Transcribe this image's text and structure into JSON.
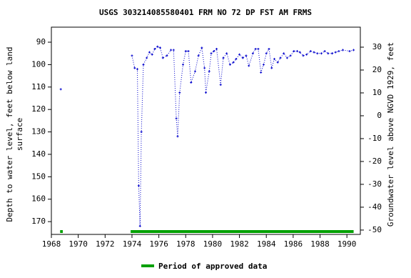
{
  "chart_data": {
    "type": "line",
    "title": "USGS 303214085580401 FRM NO 72 DP FST AM FRMS",
    "ylabel": [
      "Depth to water level, feet below land",
      "surface"
    ],
    "y2label": "Groundwater level above NGVD 1929, feet",
    "xlim": [
      1968,
      1991
    ],
    "xticks": [
      1968,
      1970,
      1972,
      1974,
      1976,
      1978,
      1980,
      1982,
      1984,
      1986,
      1988,
      1990
    ],
    "ylim": [
      175.7,
      83.3
    ],
    "yticks": [
      90,
      100,
      110,
      120,
      130,
      140,
      150,
      160,
      170
    ],
    "y2lim": [
      -51.9,
      38.75
    ],
    "y2ticks": [
      30,
      20,
      10,
      0,
      -10,
      -20,
      -30,
      -40,
      -50
    ],
    "series": [
      {
        "color": "#0000cc",
        "x": [
          1968.7,
          null,
          1974.0,
          1974.2,
          1974.4,
          1974.5,
          1974.6,
          1974.7,
          1974.85,
          1975.1,
          1975.3,
          1975.5,
          1975.7,
          1975.9,
          1976.1,
          1976.3,
          1976.6,
          1976.9,
          1977.1,
          1977.3,
          1977.4,
          1977.55,
          1977.8,
          1978.0,
          1978.2,
          1978.4,
          1978.7,
          1978.95,
          1979.2,
          1979.4,
          1979.5,
          1979.75,
          1979.9,
          1980.1,
          1980.3,
          1980.6,
          1980.8,
          1981.05,
          1981.3,
          1981.55,
          1981.75,
          1982.0,
          1982.25,
          1982.5,
          1982.7,
          1983.0,
          1983.2,
          1983.4,
          1983.6,
          1983.8,
          1984.0,
          1984.2,
          1984.4,
          1984.6,
          1984.85,
          1985.05,
          1985.3,
          1985.55,
          1985.8,
          1986.05,
          1986.3,
          1986.5,
          1986.75,
          1987.0,
          1987.3,
          1987.55,
          1987.8,
          1988.1,
          1988.35,
          1988.6,
          1988.9,
          1989.15,
          1989.4,
          1989.7,
          1990.2,
          1990.5
        ],
        "values": [
          111,
          null,
          96,
          101.5,
          102,
          154,
          172,
          130,
          100,
          97,
          94.5,
          95.5,
          93,
          92,
          92.5,
          97,
          96,
          93.5,
          93.5,
          124,
          132,
          112.5,
          100,
          94,
          94,
          108,
          103,
          96,
          92.5,
          101.5,
          112.5,
          103,
          95,
          94,
          93,
          109,
          97,
          95,
          100,
          99,
          97.5,
          95.5,
          97,
          96,
          100.5,
          95,
          93,
          93,
          103.5,
          100,
          95,
          93,
          101.5,
          97.5,
          99,
          97,
          95,
          97,
          96,
          94,
          94,
          94.5,
          96,
          95.5,
          94,
          94.5,
          95,
          95,
          94,
          95,
          95,
          94.5,
          94,
          93.5,
          94,
          93.5
        ]
      }
    ],
    "approved": {
      "name": "Period of approved data",
      "color": "#00a000",
      "periods": [
        [
          1968.65,
          1968.85
        ],
        [
          1973.9,
          1990.5
        ]
      ]
    }
  }
}
